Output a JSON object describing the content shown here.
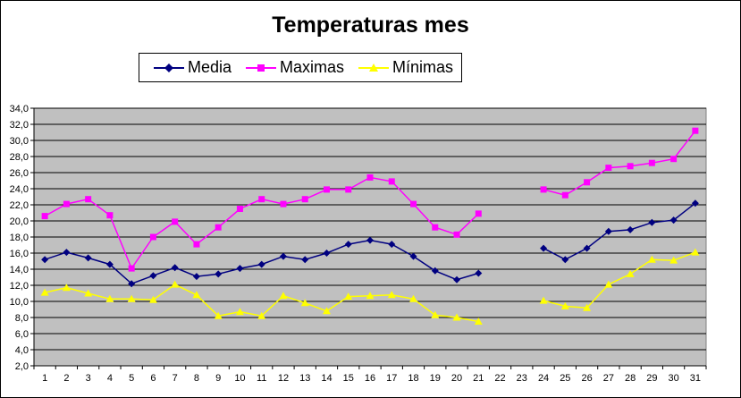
{
  "chart_data": {
    "type": "line",
    "title": "Temperaturas mes",
    "xlabel": "",
    "ylabel": "",
    "ylim": [
      2.0,
      34.0
    ],
    "ytick_step": 2.0,
    "grid": true,
    "legend_position": "top",
    "x": [
      1,
      2,
      3,
      4,
      5,
      6,
      7,
      8,
      9,
      10,
      11,
      12,
      13,
      14,
      15,
      16,
      17,
      18,
      19,
      20,
      21,
      22,
      23,
      24,
      25,
      26,
      27,
      28,
      29,
      30,
      31
    ],
    "y_tick_labels": [
      "2,0",
      "4,0",
      "6,0",
      "8,0",
      "10,0",
      "12,0",
      "14,0",
      "16,0",
      "18,0",
      "20,0",
      "22,0",
      "24,0",
      "26,0",
      "28,0",
      "30,0",
      "32,0",
      "34,0"
    ],
    "series": [
      {
        "name": "Media",
        "color": "#000080",
        "marker": "diamond",
        "values": [
          15.2,
          16.1,
          15.4,
          14.6,
          12.2,
          13.2,
          14.2,
          13.1,
          13.4,
          14.1,
          14.6,
          15.6,
          15.2,
          16.0,
          17.1,
          17.6,
          17.1,
          15.6,
          13.8,
          12.7,
          13.5,
          null,
          null,
          16.6,
          15.2,
          16.6,
          18.7,
          18.9,
          19.8,
          20.1,
          22.2
        ]
      },
      {
        "name": "Maximas",
        "color": "#FF00FF",
        "marker": "square",
        "values": [
          20.6,
          22.1,
          22.7,
          20.7,
          14.1,
          18.0,
          19.9,
          17.1,
          19.2,
          21.5,
          22.7,
          22.1,
          22.7,
          23.9,
          23.9,
          25.4,
          24.9,
          22.1,
          19.2,
          18.3,
          20.9,
          null,
          null,
          23.9,
          23.2,
          24.8,
          26.6,
          26.8,
          27.2,
          27.7,
          31.2
        ]
      },
      {
        "name": "Mínimas",
        "color": "#FFFF00",
        "marker": "triangle",
        "values": [
          11.1,
          11.7,
          11.0,
          10.3,
          10.3,
          10.2,
          12.1,
          10.8,
          8.2,
          8.7,
          8.2,
          10.7,
          9.8,
          8.8,
          10.6,
          10.7,
          10.8,
          10.3,
          8.3,
          8.0,
          7.5,
          null,
          null,
          10.1,
          9.4,
          9.2,
          12.1,
          13.4,
          15.2,
          15.1,
          16.1
        ]
      }
    ]
  },
  "colors": {
    "plot_background": "#C0C0C0",
    "gridline": "#000000"
  }
}
